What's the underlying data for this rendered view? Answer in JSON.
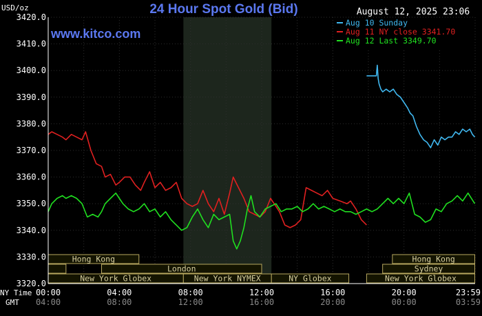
{
  "chart_data": {
    "type": "line",
    "title": "24 Hour Spot Gold (Bid)",
    "watermark": "www.kitco.com",
    "timestamp": "August 12, 2025 23:06",
    "ylabel": "USD/oz",
    "ylim": [
      3320,
      3420
    ],
    "y_ticks": [
      "3320.0",
      "3330.0",
      "3340.0",
      "3350.0",
      "3360.0",
      "3370.0",
      "3380.0",
      "3390.0",
      "3400.0",
      "3410.0",
      "3420.0"
    ],
    "x_ticks_ny": [
      "00:00",
      "04:00",
      "08:00",
      "12:00",
      "16:00",
      "20:00",
      "23:59"
    ],
    "x_ticks_gmt": [
      "04:00",
      "08:00",
      "12:00",
      "16:00",
      "20:00",
      "00:00",
      "03:59"
    ],
    "row_label_ny": "NY Time",
    "row_label_gmt": "GMT",
    "grid": true,
    "legend_position": "top-right",
    "colors": {
      "background": "#000000",
      "grid": "#2e2e2e",
      "axis_text": "#ffffff",
      "title": "#5b78f0",
      "shade": "#1d261d",
      "session_fill": "#141400",
      "session_border": "#b8a860",
      "session_text": "#d8d0a0"
    },
    "shaded_region_x": [
      7.6,
      12.55
    ],
    "sessions": [
      {
        "label": "Hong Kong",
        "start": 0.0,
        "end": 5.1,
        "row": 0
      },
      {
        "label": "Hong Kong",
        "start": 19.35,
        "end": 23.98,
        "row": 0
      },
      {
        "label": "",
        "start": 0.0,
        "end": 1.0,
        "row": 1
      },
      {
        "label": "London",
        "start": 3.0,
        "end": 12.0,
        "row": 1
      },
      {
        "label": "Sydney",
        "start": 18.8,
        "end": 23.98,
        "row": 1
      },
      {
        "label": "New York Globex",
        "start": 0.0,
        "end": 7.6,
        "row": 2
      },
      {
        "label": "New York NYMEX",
        "start": 7.6,
        "end": 12.55,
        "row": 2
      },
      {
        "label": "NY Globex",
        "start": 12.55,
        "end": 16.9,
        "row": 2
      },
      {
        "label": "New York Globex",
        "start": 17.9,
        "end": 23.98,
        "row": 2
      }
    ],
    "series": [
      {
        "name": "Aug 10 Sunday",
        "color": "#40b8f0",
        "x": [
          17.9,
          18.1,
          18.3,
          18.45,
          18.5,
          18.55,
          18.6,
          18.7,
          18.8,
          19.0,
          19.2,
          19.4,
          19.6,
          19.8,
          20.0,
          20.2,
          20.35,
          20.5,
          20.7,
          20.9,
          21.1,
          21.3,
          21.5,
          21.7,
          21.9,
          22.1,
          22.3,
          22.5,
          22.7,
          22.9,
          23.1,
          23.3,
          23.5,
          23.7,
          23.85,
          23.98
        ],
        "y": [
          3398,
          3398,
          3398,
          3398,
          3402,
          3397,
          3395,
          3393,
          3392,
          3393,
          3392,
          3393,
          3391,
          3390,
          3388,
          3386,
          3384,
          3383,
          3379,
          3376,
          3374,
          3373,
          3371,
          3374,
          3372,
          3375,
          3374,
          3375,
          3375,
          3377,
          3376,
          3378,
          3377,
          3378,
          3376,
          3375
        ]
      },
      {
        "name": "Aug 11 NY close 3341.70",
        "color": "#e02020",
        "x": [
          0.0,
          0.2,
          0.5,
          0.8,
          1.0,
          1.3,
          1.6,
          1.9,
          2.1,
          2.4,
          2.7,
          3.0,
          3.2,
          3.5,
          3.8,
          4.0,
          4.3,
          4.6,
          4.9,
          5.2,
          5.4,
          5.7,
          6.0,
          6.3,
          6.6,
          6.9,
          7.2,
          7.5,
          7.8,
          8.1,
          8.4,
          8.7,
          9.0,
          9.3,
          9.6,
          9.9,
          10.2,
          10.4,
          10.7,
          11.0,
          11.3,
          11.6,
          11.9,
          12.2,
          12.5,
          12.8,
          13.0,
          13.3,
          13.6,
          13.9,
          14.2,
          14.5,
          14.8,
          15.1,
          15.4,
          15.7,
          16.0,
          16.4,
          16.8,
          17.0,
          17.3,
          17.6,
          17.9
        ],
        "y": [
          3376,
          3377,
          3376,
          3375,
          3374,
          3376,
          3375,
          3374,
          3377,
          3370,
          3365,
          3364,
          3360,
          3361,
          3357,
          3358,
          3360,
          3360,
          3357,
          3355,
          3358,
          3362,
          3356,
          3358,
          3355,
          3356,
          3358,
          3352,
          3350,
          3349,
          3350,
          3355,
          3350,
          3347,
          3352,
          3346,
          3354,
          3360,
          3356,
          3352,
          3347,
          3346,
          3345,
          3347,
          3352,
          3349,
          3347,
          3342,
          3341,
          3342,
          3344,
          3356,
          3355,
          3354,
          3353,
          3355,
          3352,
          3351,
          3350,
          3351,
          3348,
          3344,
          3342
        ]
      },
      {
        "name": "Aug 12 Last 3349.70",
        "color": "#20e020",
        "x": [
          0.0,
          0.2,
          0.5,
          0.8,
          1.0,
          1.3,
          1.6,
          1.9,
          2.2,
          2.5,
          2.8,
          3.0,
          3.2,
          3.5,
          3.8,
          4.0,
          4.2,
          4.5,
          4.8,
          5.1,
          5.4,
          5.7,
          6.0,
          6.3,
          6.6,
          6.9,
          7.2,
          7.5,
          7.8,
          8.1,
          8.4,
          8.7,
          9.0,
          9.3,
          9.6,
          9.9,
          10.2,
          10.4,
          10.6,
          10.8,
          11.0,
          11.2,
          11.4,
          11.6,
          11.9,
          12.2,
          12.5,
          12.8,
          13.1,
          13.4,
          13.7,
          14.0,
          14.3,
          14.6,
          14.9,
          15.2,
          15.5,
          15.8,
          16.1,
          16.4,
          16.7,
          17.0,
          17.3,
          17.6,
          17.9,
          18.2,
          18.5,
          18.8,
          19.1,
          19.4,
          19.7,
          20.0,
          20.3,
          20.6,
          20.9,
          21.2,
          21.5,
          21.8,
          22.1,
          22.4,
          22.7,
          23.0,
          23.3,
          23.6,
          23.98
        ],
        "y": [
          3347,
          3350,
          3352,
          3353,
          3352,
          3353,
          3352,
          3350,
          3345,
          3346,
          3345,
          3347,
          3350,
          3352,
          3354,
          3352,
          3350,
          3348,
          3347,
          3348,
          3350,
          3347,
          3348,
          3345,
          3347,
          3344,
          3342,
          3340,
          3341,
          3345,
          3348,
          3344,
          3341,
          3346,
          3344,
          3345,
          3346,
          3336,
          3333,
          3336,
          3341,
          3348,
          3353,
          3347,
          3345,
          3348,
          3349,
          3350,
          3347,
          3348,
          3348,
          3349,
          3347,
          3348,
          3350,
          3348,
          3349,
          3348,
          3347,
          3348,
          3347,
          3347,
          3346,
          3347,
          3348,
          3347,
          3348,
          3350,
          3352,
          3350,
          3352,
          3350,
          3354,
          3346,
          3345,
          3343,
          3344,
          3348,
          3347,
          3350,
          3351,
          3353,
          3351,
          3354,
          3350
        ]
      }
    ]
  }
}
